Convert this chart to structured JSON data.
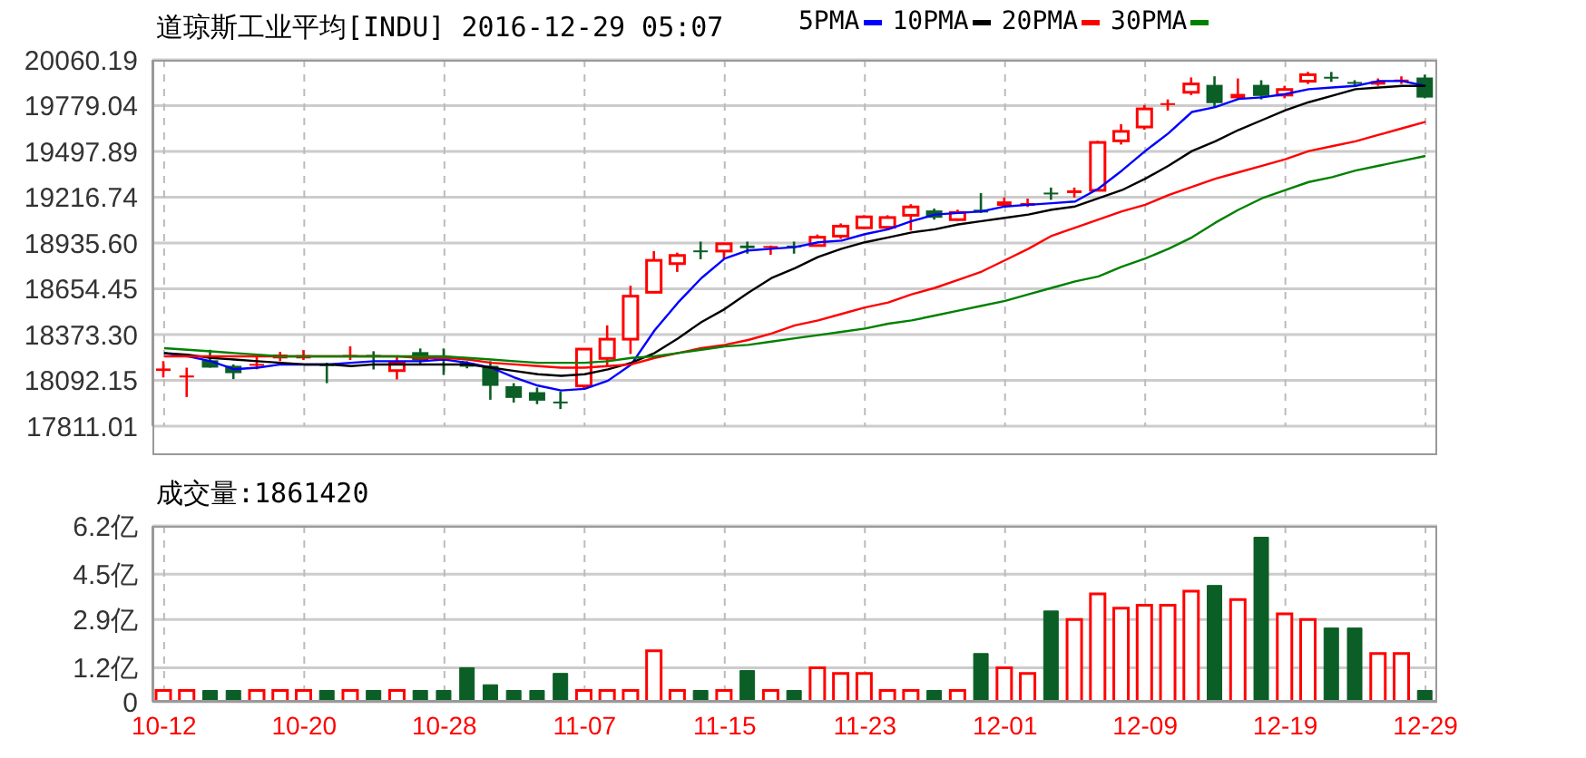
{
  "chart_data": [
    {
      "type": "candlestick",
      "title": "道琼斯工业平均[INDU] 2016-12-29 05:07",
      "categories": [
        null,
        null,
        null,
        null,
        null,
        null,
        null,
        null,
        null,
        null,
        null,
        null,
        null,
        null,
        null,
        null,
        null,
        null,
        null,
        null,
        null,
        null,
        null,
        null,
        null,
        null,
        null,
        null,
        null,
        null,
        null,
        null,
        null,
        null,
        null,
        null,
        null,
        null,
        null,
        null,
        null,
        null,
        null,
        null,
        null,
        null,
        null,
        null,
        null,
        null,
        null,
        null,
        null,
        null,
        null
      ],
      "ohlc": [
        [
          18150,
          18210,
          18110,
          18165
        ],
        [
          18110,
          18170,
          17990,
          18122
        ],
        [
          18210,
          18280,
          18170,
          18176
        ],
        [
          18176,
          18190,
          18100,
          18142
        ],
        [
          18183,
          18250,
          18160,
          18193
        ],
        [
          18227,
          18267,
          18210,
          18251
        ],
        [
          18227,
          18278,
          18217,
          18247
        ],
        [
          18193,
          18200,
          18075,
          18180
        ],
        [
          18238,
          18301,
          18217,
          18248
        ],
        [
          18248,
          18271,
          18159,
          18238
        ],
        [
          18152,
          18244,
          18098,
          18200
        ],
        [
          18260,
          18288,
          18186,
          18220
        ],
        [
          18235,
          18288,
          18125,
          18225
        ],
        [
          18200,
          18210,
          18166,
          18176
        ],
        [
          18176,
          18210,
          17973,
          18064
        ],
        [
          18051,
          18075,
          17956,
          17990
        ],
        [
          18014,
          18048,
          17946,
          17973
        ],
        [
          17962,
          18024,
          17916,
          17952
        ],
        [
          18058,
          18288,
          18041,
          18284
        ],
        [
          18227,
          18430,
          18176,
          18345
        ],
        [
          18345,
          18673,
          18254,
          18609
        ],
        [
          18633,
          18886,
          18630,
          18829
        ],
        [
          18809,
          18876,
          18758,
          18859
        ],
        [
          18890,
          18944,
          18836,
          18880
        ],
        [
          18886,
          18937,
          18836,
          18931
        ],
        [
          18920,
          18944,
          18870,
          18904
        ],
        [
          18907,
          18920,
          18863,
          18917
        ],
        [
          18920,
          18944,
          18870,
          18910
        ],
        [
          18920,
          18988,
          18915,
          18971
        ],
        [
          18978,
          19056,
          18961,
          19039
        ],
        [
          19029,
          19106,
          19022,
          19096
        ],
        [
          19032,
          19106,
          19022,
          19092
        ],
        [
          19106,
          19174,
          19012,
          19157
        ],
        [
          19130,
          19147,
          19079,
          19096
        ],
        [
          19079,
          19140,
          19073,
          19123
        ],
        [
          19140,
          19242,
          19120,
          19123
        ],
        [
          19164,
          19215,
          19157,
          19191
        ],
        [
          19164,
          19208,
          19157,
          19181
        ],
        [
          19245,
          19276,
          19201,
          19235
        ],
        [
          19242,
          19276,
          19215,
          19259
        ],
        [
          19259,
          19563,
          19255,
          19553
        ],
        [
          19563,
          19665,
          19540,
          19621
        ],
        [
          19648,
          19783,
          19631,
          19759
        ],
        [
          19784,
          19817,
          19749,
          19794
        ],
        [
          19861,
          19952,
          19844,
          19912
        ],
        [
          19901,
          19959,
          19766,
          19800
        ],
        [
          19824,
          19946,
          19817,
          19851
        ],
        [
          19901,
          19935,
          19817,
          19844
        ],
        [
          19844,
          19901,
          19824,
          19878
        ],
        [
          19929,
          19986,
          19912,
          19969
        ],
        [
          19956,
          19986,
          19925,
          19946
        ],
        [
          19924,
          19935,
          19901,
          19914
        ],
        [
          19908,
          19946,
          19901,
          19929
        ],
        [
          19929,
          19959,
          19912,
          19939
        ],
        [
          19946,
          19969,
          19824,
          19834
        ]
      ],
      "colors": [
        "#ff0000",
        "#ff0000",
        "#0b5e26",
        "#0b5e26",
        "#ff0000",
        "#ff0000",
        "#ff0000",
        "#0b5e26",
        "#ff0000",
        "#0b5e26",
        "#ff0000",
        "#0b5e26",
        "#0b5e26",
        "#0b5e26",
        "#0b5e26",
        "#0b5e26",
        "#0b5e26",
        "#0b5e26",
        "#ff0000",
        "#ff0000",
        "#ff0000",
        "#ff0000",
        "#ff0000",
        "#0b5e26",
        "#ff0000",
        "#0b5e26",
        "#ff0000",
        "#0b5e26",
        "#ff0000",
        "#ff0000",
        "#ff0000",
        "#ff0000",
        "#ff0000",
        "#0b5e26",
        "#ff0000",
        "#0b5e26",
        "#ff0000",
        "#ff0000",
        "#0b5e26",
        "#ff0000",
        "#ff0000",
        "#ff0000",
        "#ff0000",
        "#ff0000",
        "#ff0000",
        "#0b5e26",
        "#ff0000",
        "#0b5e26",
        "#ff0000",
        "#ff0000",
        "#0b5e26",
        "#0b5e26",
        "#ff0000",
        "#ff0000",
        "#0b5e26"
      ],
      "series": [
        {
          "type": "line",
          "name": "5PMA",
          "color": "#0000ff",
          "values": [
            18260,
            18240,
            18210,
            18160,
            18170,
            18190,
            18190,
            18190,
            18200,
            18210,
            18210,
            18210,
            18220,
            18200,
            18170,
            18110,
            18060,
            18030,
            18040,
            18090,
            18190,
            18400,
            18570,
            18720,
            18840,
            18890,
            18900,
            18910,
            18940,
            18950,
            18990,
            19020,
            19070,
            19110,
            19120,
            19130,
            19160,
            19170,
            19180,
            19190,
            19270,
            19380,
            19500,
            19610,
            19740,
            19770,
            19820,
            19830,
            19850,
            19880,
            19890,
            19900,
            19930,
            19930,
            19900
          ]
        },
        {
          "type": "line",
          "name": "10PMA",
          "color": "#000000",
          "values": [
            18260,
            18250,
            18230,
            18220,
            18210,
            18200,
            18190,
            18190,
            18180,
            18190,
            18190,
            18190,
            18190,
            18190,
            18170,
            18150,
            18130,
            18120,
            18130,
            18160,
            18200,
            18260,
            18350,
            18450,
            18530,
            18630,
            18720,
            18780,
            18850,
            18900,
            18940,
            18970,
            19000,
            19020,
            19050,
            19070,
            19090,
            19110,
            19140,
            19160,
            19210,
            19260,
            19330,
            19410,
            19500,
            19560,
            19630,
            19690,
            19750,
            19800,
            19840,
            19880,
            19890,
            19900,
            19900
          ]
        },
        {
          "type": "line",
          "name": "20PMA",
          "color": "#ff0000",
          "values": [
            18240,
            18240,
            18240,
            18240,
            18240,
            18240,
            18240,
            18240,
            18240,
            18240,
            18240,
            18230,
            18230,
            18220,
            18200,
            18190,
            18180,
            18170,
            18170,
            18180,
            18190,
            18230,
            18260,
            18290,
            18310,
            18340,
            18380,
            18430,
            18460,
            18500,
            18540,
            18570,
            18620,
            18660,
            18710,
            18760,
            18830,
            18900,
            18980,
            19030,
            19080,
            19130,
            19170,
            19230,
            19280,
            19330,
            19370,
            19410,
            19450,
            19500,
            19530,
            19560,
            19600,
            19640,
            19680
          ]
        },
        {
          "type": "line",
          "name": "30PMA",
          "color": "#008000",
          "values": [
            18290,
            18280,
            18270,
            18260,
            18250,
            18240,
            18240,
            18240,
            18240,
            18240,
            18240,
            18240,
            18240,
            18230,
            18220,
            18210,
            18200,
            18200,
            18200,
            18210,
            18230,
            18240,
            18260,
            18280,
            18300,
            18310,
            18330,
            18350,
            18370,
            18390,
            18410,
            18440,
            18460,
            18490,
            18520,
            18550,
            18580,
            18620,
            18660,
            18700,
            18730,
            18790,
            18840,
            18900,
            18970,
            19060,
            19140,
            19210,
            19260,
            19310,
            19340,
            19380,
            19410,
            19440,
            19470
          ]
        }
      ],
      "ylim": [
        17811.01,
        20060.19
      ],
      "yticks": [
        17811.01,
        18092.15,
        {
          "value": 18373.3,
          "label": "18373.30"
        },
        18654.45,
        {
          "value": 18935.6,
          "label": "18935.60"
        },
        19216.74,
        19497.89,
        19779.04,
        20060.19
      ],
      "grid": true,
      "legend": "top right",
      "tick_labels": "y"
    },
    {
      "type": "bar",
      "title": "成交量:1861420",
      "categories": [
        "10-12",
        null,
        null,
        null,
        null,
        null,
        "10-20",
        null,
        null,
        null,
        null,
        null,
        "10-28",
        null,
        null,
        null,
        null,
        null,
        "11-07",
        null,
        null,
        null,
        null,
        null,
        "11-15",
        null,
        null,
        null,
        null,
        null,
        "11-23",
        null,
        null,
        null,
        null,
        null,
        "12-01",
        null,
        null,
        null,
        null,
        null,
        "12-09",
        null,
        null,
        null,
        null,
        null,
        "12-19",
        null,
        null,
        null,
        null,
        null,
        "12-29"
      ],
      "values": [
        0.4,
        0.4,
        0.4,
        0.4,
        0.4,
        0.4,
        0.4,
        0.4,
        0.4,
        0.4,
        0.4,
        0.4,
        0.4,
        1.2,
        0.6,
        0.4,
        0.4,
        1.0,
        0.4,
        0.4,
        0.4,
        1.8,
        0.4,
        0.4,
        0.4,
        1.1,
        0.4,
        0.4,
        1.2,
        1.0,
        1.0,
        0.4,
        0.4,
        0.4,
        0.4,
        1.7,
        1.2,
        1.0,
        3.2,
        2.9,
        3.8,
        3.3,
        3.4,
        3.4,
        3.9,
        4.1,
        3.6,
        5.8,
        3.1,
        2.9,
        2.6,
        2.6,
        1.7,
        1.7,
        0.4
      ],
      "colors": [
        "#ff0000",
        "#ff0000",
        "#0b5e26",
        "#0b5e26",
        "#ff0000",
        "#ff0000",
        "#ff0000",
        "#0b5e26",
        "#ff0000",
        "#0b5e26",
        "#ff0000",
        "#0b5e26",
        "#0b5e26",
        "#0b5e26",
        "#0b5e26",
        "#0b5e26",
        "#0b5e26",
        "#0b5e26",
        "#ff0000",
        "#ff0000",
        "#ff0000",
        "#ff0000",
        "#ff0000",
        "#0b5e26",
        "#ff0000",
        "#0b5e26",
        "#ff0000",
        "#0b5e26",
        "#ff0000",
        "#ff0000",
        "#ff0000",
        "#ff0000",
        "#ff0000",
        "#0b5e26",
        "#ff0000",
        "#0b5e26",
        "#ff0000",
        "#ff0000",
        "#0b5e26",
        "#ff0000",
        "#ff0000",
        "#ff0000",
        "#ff0000",
        "#ff0000",
        "#ff0000",
        "#0b5e26",
        "#ff0000",
        "#0b5e26",
        "#ff0000",
        "#ff0000",
        "#0b5e26",
        "#0b5e26",
        "#ff0000",
        "#ff0000",
        "#0b5e26"
      ],
      "ylim": [
        0,
        6.2
      ],
      "yticks": [
        0,
        {
          "value": 1.2,
          "label": "1.2亿"
        },
        {
          "value": 2.9,
          "label": "2.9亿"
        },
        {
          "value": 4.5,
          "label": "4.5亿"
        },
        {
          "value": 6.2,
          "label": "6.2亿"
        }
      ],
      "grid": true
    }
  ]
}
